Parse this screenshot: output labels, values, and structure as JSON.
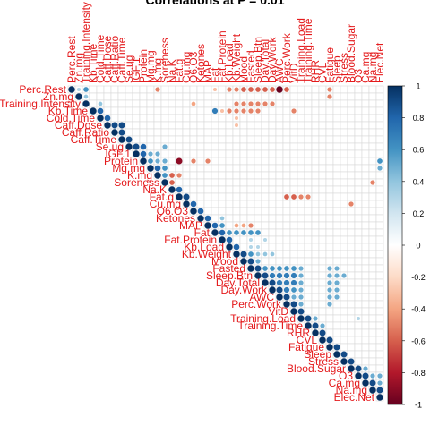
{
  "chart_data": {
    "type": "heatmap",
    "title": "Correlations at P = 0.01",
    "layout": "upper-triangle",
    "variables": [
      "Perc.Rest",
      "Zn.mg",
      "Training.Intensity",
      "Kb.Time",
      "Cold.Time",
      "Caff.Dose",
      "Caff.Ratio",
      "Caff.Time",
      "Se.ug",
      "IGF.1",
      "Protein",
      "Mg.mg",
      "K.mg",
      "Soreness",
      "Na.K",
      "Fat.g",
      "Cu.mg",
      "O6.O3",
      "Ketones",
      "MAP",
      "Fat",
      "Fat.Protein",
      "Kb.Load",
      "Kb.Weight",
      "Mood",
      "Fasted",
      "Sleep.Btn",
      "Day.Total",
      "Day.Work",
      "AWC",
      "Perc.Work",
      "VitD",
      "Training.Load",
      "Training.Time",
      "RHR",
      "CVL",
      "Fatigue",
      "Sleep",
      "Stress",
      "Blood.Sugar",
      "O3",
      "Ca.mg",
      "Na.mg",
      "Elec.Net"
    ],
    "significant_correlations": [
      [
        0,
        1,
        0.3
      ],
      [
        0,
        2,
        0.6
      ],
      [
        0,
        12,
        -0.5
      ],
      [
        0,
        20,
        -0.3
      ],
      [
        0,
        22,
        -0.5
      ],
      [
        0,
        23,
        -0.5
      ],
      [
        0,
        24,
        -0.6
      ],
      [
        0,
        25,
        -0.6
      ],
      [
        0,
        26,
        -0.6
      ],
      [
        0,
        27,
        -0.6
      ],
      [
        0,
        28,
        -0.6
      ],
      [
        0,
        29,
        -1.0
      ],
      [
        0,
        30,
        -0.6
      ],
      [
        0,
        36,
        -0.5
      ],
      [
        1,
        2,
        0.4
      ],
      [
        1,
        36,
        -0.5
      ],
      [
        2,
        4,
        0.4
      ],
      [
        2,
        17,
        -0.4
      ],
      [
        2,
        23,
        -0.5
      ],
      [
        2,
        24,
        -0.5
      ],
      [
        2,
        25,
        -0.5
      ],
      [
        2,
        26,
        -0.5
      ],
      [
        2,
        27,
        -0.5
      ],
      [
        2,
        28,
        -0.5
      ],
      [
        3,
        4,
        0.8
      ],
      [
        3,
        20,
        0.7
      ],
      [
        3,
        21,
        -0.3
      ],
      [
        3,
        22,
        -0.5
      ],
      [
        3,
        23,
        -0.5
      ],
      [
        3,
        24,
        -0.5
      ],
      [
        3,
        25,
        -0.5
      ],
      [
        3,
        26,
        -0.5
      ],
      [
        3,
        31,
        -0.5
      ],
      [
        4,
        5,
        0.8
      ],
      [
        4,
        23,
        -0.3
      ],
      [
        5,
        6,
        0.9
      ],
      [
        5,
        7,
        0.9
      ],
      [
        5,
        23,
        -0.3
      ],
      [
        6,
        7,
        0.9
      ],
      [
        7,
        8,
        0.9
      ],
      [
        8,
        9,
        0.9
      ],
      [
        8,
        10,
        0.8
      ],
      [
        8,
        13,
        0.5
      ],
      [
        9,
        10,
        0.8
      ],
      [
        9,
        11,
        0.5
      ],
      [
        9,
        12,
        0.5
      ],
      [
        10,
        11,
        0.6
      ],
      [
        10,
        12,
        0.5
      ],
      [
        10,
        13,
        0.5
      ],
      [
        10,
        15,
        -0.9
      ],
      [
        10,
        17,
        -0.5
      ],
      [
        10,
        19,
        -0.5
      ],
      [
        10,
        43,
        0.6
      ],
      [
        11,
        12,
        0.8
      ],
      [
        11,
        13,
        0.6
      ],
      [
        11,
        43,
        0.5
      ],
      [
        12,
        13,
        0.6
      ],
      [
        12,
        14,
        -0.6
      ],
      [
        12,
        15,
        -0.5
      ],
      [
        13,
        14,
        -0.6
      ],
      [
        13,
        42,
        -0.5
      ],
      [
        14,
        15,
        0.8
      ],
      [
        15,
        16,
        0.9
      ],
      [
        15,
        30,
        -0.6
      ],
      [
        15,
        31,
        -0.6
      ],
      [
        15,
        32,
        -0.5
      ],
      [
        15,
        33,
        -0.5
      ],
      [
        16,
        17,
        0.8
      ],
      [
        16,
        39,
        -0.5
      ],
      [
        17,
        18,
        0.8
      ],
      [
        18,
        19,
        0.8
      ],
      [
        18,
        21,
        0.4
      ],
      [
        19,
        20,
        0.8
      ],
      [
        19,
        21,
        0.6
      ],
      [
        19,
        23,
        -0.4
      ],
      [
        19,
        24,
        -0.4
      ],
      [
        19,
        25,
        -0.5
      ],
      [
        20,
        21,
        0.8
      ],
      [
        20,
        22,
        0.6
      ],
      [
        20,
        23,
        0.6
      ],
      [
        20,
        24,
        0.6
      ],
      [
        20,
        25,
        0.6
      ],
      [
        20,
        26,
        0.6
      ],
      [
        21,
        22,
        0.8
      ],
      [
        21,
        25,
        0.3
      ],
      [
        21,
        27,
        0.3
      ],
      [
        22,
        23,
        0.8
      ],
      [
        22,
        25,
        0.3
      ],
      [
        22,
        26,
        0.3
      ],
      [
        23,
        24,
        0.9
      ],
      [
        23,
        25,
        0.6
      ],
      [
        23,
        26,
        0.4
      ],
      [
        23,
        27,
        0.4
      ],
      [
        23,
        28,
        0.4
      ],
      [
        24,
        25,
        0.9
      ],
      [
        24,
        26,
        0.5
      ],
      [
        25,
        26,
        0.9
      ],
      [
        25,
        27,
        0.6
      ],
      [
        25,
        28,
        0.6
      ],
      [
        25,
        29,
        0.6
      ],
      [
        25,
        30,
        0.6
      ],
      [
        25,
        31,
        0.6
      ],
      [
        25,
        32,
        0.5
      ],
      [
        25,
        36,
        0.5
      ],
      [
        25,
        37,
        0.5
      ],
      [
        26,
        27,
        0.9
      ],
      [
        26,
        28,
        0.7
      ],
      [
        26,
        29,
        0.7
      ],
      [
        26,
        30,
        0.7
      ],
      [
        26,
        31,
        0.7
      ],
      [
        26,
        32,
        0.5
      ],
      [
        26,
        36,
        0.5
      ],
      [
        26,
        37,
        0.5
      ],
      [
        26,
        38,
        0.5
      ],
      [
        27,
        28,
        0.9
      ],
      [
        27,
        29,
        0.7
      ],
      [
        27,
        30,
        0.7
      ],
      [
        27,
        31,
        0.7
      ],
      [
        27,
        32,
        0.5
      ],
      [
        27,
        36,
        0.5
      ],
      [
        27,
        37,
        0.5
      ],
      [
        28,
        29,
        0.9
      ],
      [
        28,
        30,
        0.7
      ],
      [
        28,
        31,
        0.6
      ],
      [
        28,
        32,
        0.5
      ],
      [
        28,
        36,
        0.5
      ],
      [
        28,
        37,
        0.5
      ],
      [
        29,
        30,
        0.9
      ],
      [
        29,
        31,
        0.5
      ],
      [
        29,
        32,
        0.5
      ],
      [
        29,
        36,
        0.5
      ],
      [
        29,
        37,
        0.5
      ],
      [
        30,
        31,
        0.9
      ],
      [
        30,
        32,
        0.5
      ],
      [
        30,
        36,
        0.5
      ],
      [
        31,
        32,
        0.9
      ],
      [
        32,
        33,
        0.9
      ],
      [
        32,
        34,
        0.5
      ],
      [
        32,
        40,
        0.3
      ],
      [
        33,
        34,
        0.9
      ],
      [
        33,
        35,
        0.5
      ],
      [
        34,
        35,
        0.9
      ],
      [
        35,
        36,
        0.9
      ],
      [
        36,
        37,
        0.9
      ],
      [
        37,
        38,
        0.9
      ],
      [
        38,
        39,
        0.9
      ],
      [
        39,
        40,
        0.9
      ],
      [
        39,
        41,
        0.5
      ],
      [
        40,
        41,
        0.9
      ],
      [
        40,
        42,
        0.5
      ],
      [
        40,
        43,
        0.5
      ],
      [
        41,
        42,
        0.9
      ],
      [
        41,
        43,
        0.5
      ],
      [
        42,
        43,
        0.9
      ]
    ],
    "diagonal_value": 1,
    "colorbar": {
      "range": [
        -1,
        1
      ],
      "ticks": [
        "1",
        "0.8",
        "0.6",
        "0.4",
        "0.2",
        "0",
        "-0.2",
        "-0.4",
        "-0.6",
        "-0.8",
        "-1"
      ],
      "low_color": "#67001f",
      "mid_color": "#ffffff",
      "high_color": "#053061"
    },
    "label_color": "#e41a1c",
    "grid": true
  }
}
